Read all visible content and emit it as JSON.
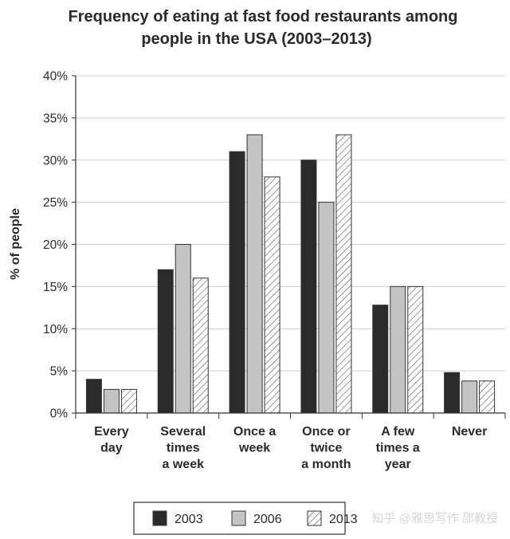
{
  "chart_data": {
    "type": "bar",
    "title": [
      "Frequency of eating at fast food restaurants among",
      "people in the USA (2003–2013)"
    ],
    "ylabel": "% of people",
    "xlabel": "",
    "ylim": [
      0,
      40
    ],
    "yticks": [
      0,
      5,
      10,
      15,
      20,
      25,
      30,
      35,
      40
    ],
    "ytick_labels": [
      "0%",
      "5%",
      "10%",
      "15%",
      "20%",
      "25%",
      "30%",
      "35%",
      "40%"
    ],
    "grid": true,
    "legend_position": "bottom",
    "categories": [
      [
        "Every",
        "day"
      ],
      [
        "Several",
        "times",
        "a week"
      ],
      [
        "Once a",
        "week"
      ],
      [
        "Once or",
        "twice",
        "a month"
      ],
      [
        "A few",
        "times a",
        "year"
      ],
      [
        "Never"
      ]
    ],
    "series": [
      {
        "name": "2003",
        "fill": "#2b2b2b",
        "pattern": "solid",
        "values": [
          4,
          17,
          31,
          30,
          12.8,
          4.8
        ]
      },
      {
        "name": "2006",
        "fill": "#c4c4c4",
        "pattern": "solid",
        "values": [
          2.8,
          20,
          33,
          25,
          15,
          3.8
        ]
      },
      {
        "name": "2013",
        "fill": "#ffffff",
        "pattern": "hatched",
        "values": [
          2.8,
          16,
          28,
          33,
          15,
          3.8
        ]
      }
    ]
  },
  "watermark": "知乎 @雅思写作 邵教授"
}
